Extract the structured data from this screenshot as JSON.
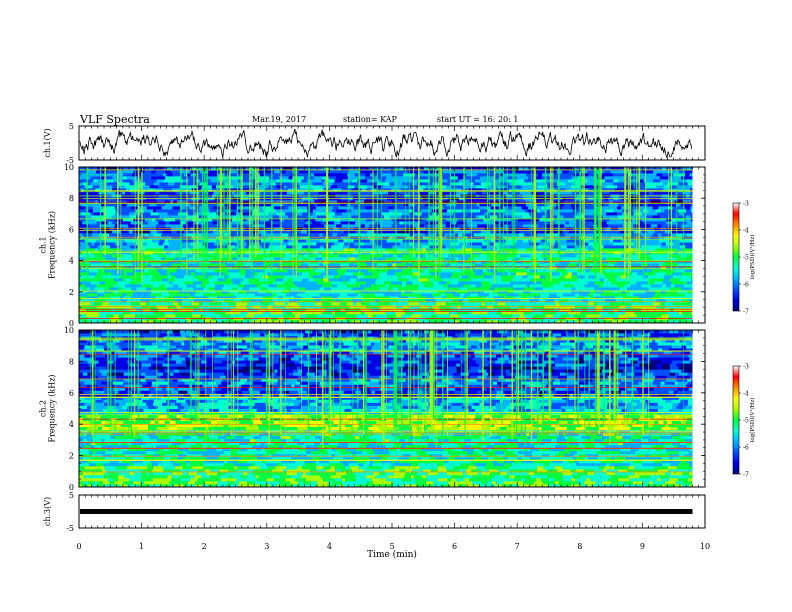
{
  "header": {
    "title": "VLF Spectra",
    "date": "Mar.19, 2017",
    "station": "station= KAP",
    "start": "start  UT  =   16: 20: 1"
  },
  "colors": {
    "colormap": [
      "#00007a",
      "#0000e6",
      "#0050ff",
      "#00b4ff",
      "#00ffd0",
      "#00ff40",
      "#aaff00",
      "#ffff00",
      "#ff8c00",
      "#ff0000",
      "#ffffff"
    ]
  },
  "chart_data": [
    {
      "type": "line",
      "ylabel": "ch.1(V)",
      "ylim": [
        -5,
        5
      ],
      "y_ticks": [
        "5",
        "-5"
      ],
      "xlim": [
        0,
        10
      ],
      "x_ticks": [
        "0",
        "1",
        "2",
        "3",
        "4",
        "5",
        "6",
        "7",
        "8",
        "9",
        "10"
      ],
      "data_end": 9.8,
      "series": [
        {
          "description": "noisy waveform oscillating around 0 V",
          "amplitude": 2.5
        }
      ]
    },
    {
      "type": "heatmap",
      "ylabel": "ch.1\nFrequency  (kHz)",
      "ylim": [
        0,
        10
      ],
      "y_ticks": [
        "0",
        "2",
        "4",
        "6",
        "8",
        "10"
      ],
      "xlim": [
        0,
        10
      ],
      "colorbar": {
        "label": "log(PSD)(V²/Hz)",
        "range": [
          -7,
          -3
        ],
        "ticks": [
          "-3",
          "-4",
          "-5",
          "-6",
          "-7"
        ]
      }
    },
    {
      "type": "heatmap",
      "ylabel": "ch.2\nFrequency  (kHz)",
      "ylim": [
        0,
        10
      ],
      "y_ticks": [
        "0",
        "2",
        "4",
        "6",
        "8",
        "10"
      ],
      "xlim": [
        0,
        10
      ],
      "colorbar": {
        "label": "log(PSD)(V²/Hz)",
        "range": [
          -7,
          -3
        ],
        "ticks": [
          "-3",
          "-4",
          "-5",
          "-6",
          "-7"
        ]
      }
    },
    {
      "type": "line",
      "ylabel": "ch.3(V)",
      "ylim": [
        -5,
        5
      ],
      "y_ticks": [
        "5",
        "-5"
      ],
      "xlim": [
        0,
        10
      ],
      "x_ticks": [
        "0",
        "1",
        "2",
        "3",
        "4",
        "5",
        "6",
        "7",
        "8",
        "9",
        "10"
      ],
      "xlabel": "Time  (min)",
      "data_end": 9.8,
      "series": [
        {
          "description": "flat line near 0 V",
          "values": [
            0
          ]
        }
      ]
    }
  ]
}
